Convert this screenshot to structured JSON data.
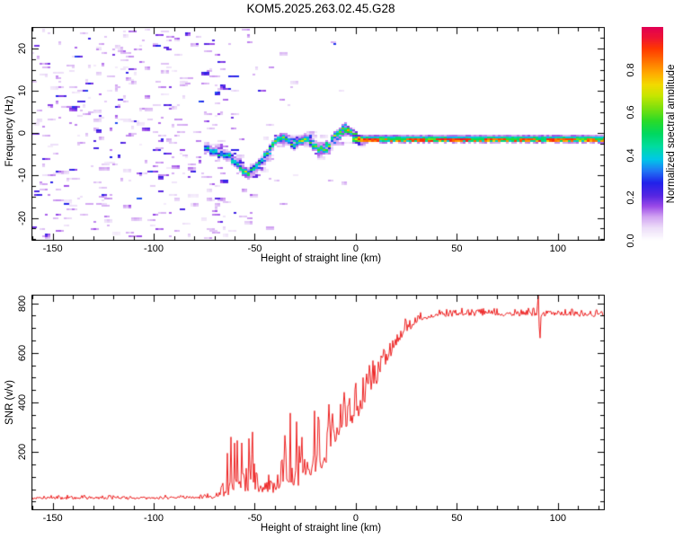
{
  "title": "KOM5.2025.263.02.45.G28",
  "chart_data": [
    {
      "type": "heatmap",
      "xlabel": "Height of straight line (km)",
      "ylabel": "Frequency (Hz)",
      "xlim": [
        -160.5,
        123.2
      ],
      "ylim": [
        -25.4,
        25.1
      ],
      "grid": false,
      "xticks": {
        "values": [
          -150,
          -100,
          -50,
          0,
          50,
          100
        ],
        "labels": [
          "-150",
          "-100",
          "-50",
          "0",
          "50",
          "100"
        ],
        "minor_step": 10
      },
      "yticks": {
        "values": [
          20,
          10,
          0,
          -10,
          -20
        ],
        "labels": [
          "20",
          "10",
          "0",
          "-10",
          "-20"
        ],
        "minor_step": 2.5
      },
      "colorbar": {
        "label": "Normalized spectral amplitude",
        "range": [
          0,
          1
        ],
        "tick_values": [
          0,
          0.2,
          0.4,
          0.6,
          0.8
        ],
        "tick_labels": [
          "0.0",
          "0.2",
          "0.4",
          "0.6",
          "0.8"
        ],
        "stops": [
          [
            0.0,
            "#ffffff"
          ],
          [
            0.06,
            "#ecddf8"
          ],
          [
            0.11,
            "#d2a4f2"
          ],
          [
            0.16,
            "#9b4ae8"
          ],
          [
            0.21,
            "#5526e2"
          ],
          [
            0.27,
            "#2121ea"
          ],
          [
            0.33,
            "#1f7cf5"
          ],
          [
            0.38,
            "#00c8e8"
          ],
          [
            0.44,
            "#00dca0"
          ],
          [
            0.5,
            "#00d860"
          ],
          [
            0.56,
            "#2ada28"
          ],
          [
            0.62,
            "#7ce00e"
          ],
          [
            0.68,
            "#c8e600"
          ],
          [
            0.73,
            "#f2da00"
          ],
          [
            0.78,
            "#ffae00"
          ],
          [
            0.84,
            "#ff7300"
          ],
          [
            0.9,
            "#ff3800"
          ],
          [
            0.95,
            "#ef1433"
          ],
          [
            1.0,
            "#e20053"
          ]
        ]
      },
      "noise_field": {
        "x_range": [
          -160.5,
          -70
        ],
        "freq_range": [
          -25.4,
          25.1
        ],
        "amplitude_range": [
          0.03,
          0.26
        ]
      },
      "ridge_track": [
        [
          -75.5,
          -3.0,
          0.38
        ],
        [
          -73,
          -3.6,
          0.46
        ],
        [
          -71,
          -4.0,
          0.5
        ],
        [
          -69,
          -4.3,
          0.45
        ],
        [
          -67,
          -4.6,
          0.42
        ],
        [
          -65,
          -5.0,
          0.46
        ],
        [
          -63,
          -5.4,
          0.48
        ],
        [
          -61,
          -6.2,
          0.5
        ],
        [
          -59,
          -7.2,
          0.52
        ],
        [
          -57,
          -8.3,
          0.56
        ],
        [
          -55,
          -9.2,
          0.68
        ],
        [
          -53,
          -9.2,
          0.54
        ],
        [
          -51,
          -8.2,
          0.48
        ],
        [
          -49,
          -7.2,
          0.5
        ],
        [
          -47,
          -6.2,
          0.46
        ],
        [
          -45,
          -5.0,
          0.5
        ],
        [
          -43,
          -3.6,
          0.48
        ],
        [
          -41,
          -2.2,
          0.52
        ],
        [
          -39,
          -1.3,
          0.56
        ],
        [
          -37,
          -0.9,
          0.62
        ],
        [
          -35,
          -1.2,
          0.52
        ],
        [
          -33,
          -1.8,
          0.48
        ],
        [
          -31,
          -2.3,
          0.52
        ],
        [
          -29,
          -2.0,
          0.56
        ],
        [
          -27,
          -1.3,
          0.62
        ],
        [
          -25,
          -1.3,
          0.56
        ],
        [
          -23,
          -2.0,
          0.52
        ],
        [
          -21,
          -3.0,
          0.52
        ],
        [
          -19,
          -3.6,
          0.56
        ],
        [
          -17,
          -3.8,
          0.62
        ],
        [
          -15,
          -3.4,
          0.56
        ],
        [
          -13,
          -2.2,
          0.52
        ],
        [
          -11,
          -0.8,
          0.56
        ],
        [
          -9,
          0.2,
          0.6
        ],
        [
          -7,
          1.0,
          0.64
        ],
        [
          -5,
          1.2,
          0.66
        ],
        [
          -4,
          0.9,
          0.68
        ],
        [
          -3,
          0.6,
          0.64
        ],
        [
          -2,
          -0.2,
          0.66
        ],
        [
          -1,
          -0.9,
          0.74
        ],
        [
          0,
          -1.2,
          0.85
        ],
        [
          1,
          -1.25,
          0.95
        ],
        [
          2,
          -1.25,
          1.0
        ]
      ],
      "flat_line": {
        "freq": -1.25,
        "x_range": [
          2,
          123.4
        ],
        "segments": [
          [
            2,
            10,
            0.95
          ],
          [
            10,
            12.5,
            0.6
          ],
          [
            12.5,
            15,
            0.85
          ],
          [
            15,
            24,
            0.55
          ],
          [
            24,
            33,
            0.9
          ],
          [
            33,
            38,
            0.6
          ],
          [
            38,
            56,
            0.93
          ],
          [
            56,
            62,
            0.55
          ],
          [
            62,
            73,
            0.9
          ],
          [
            73,
            80,
            0.55
          ],
          [
            80,
            88,
            0.88
          ],
          [
            88,
            93,
            0.5
          ],
          [
            93,
            108,
            0.9
          ],
          [
            108,
            113,
            0.6
          ],
          [
            113,
            117,
            0.85
          ],
          [
            117,
            121,
            0.55
          ],
          [
            121,
            123.4,
            0.92
          ]
        ]
      }
    },
    {
      "type": "line",
      "xlabel": "Height of straight line (km)",
      "ylabel": "SNR (v/v)",
      "xlim": [
        -160.5,
        123.2
      ],
      "ylim": [
        -35,
        835
      ],
      "grid": false,
      "xticks": {
        "values": [
          -150,
          -100,
          -50,
          0,
          50,
          100
        ],
        "labels": [
          "-150",
          "-100",
          "-50",
          "0",
          "50",
          "100"
        ],
        "minor_step": 10
      },
      "yticks": {
        "values": [
          200,
          400,
          600,
          800
        ],
        "labels": [
          "200",
          "400",
          "600",
          "800"
        ],
        "minor_step": 50
      },
      "line_color": "#ee2222",
      "envelope": [
        [
          -160.5,
          12,
          10
        ],
        [
          -150,
          12,
          12
        ],
        [
          -140,
          14,
          14
        ],
        [
          -130,
          12,
          10
        ],
        [
          -120,
          13,
          10
        ],
        [
          -110,
          12,
          10
        ],
        [
          -100,
          13,
          11
        ],
        [
          -90,
          13,
          12
        ],
        [
          -80,
          15,
          14
        ],
        [
          -72,
          15,
          16
        ],
        [
          -67,
          18,
          25
        ],
        [
          -65,
          25,
          80
        ],
        [
          -63.5,
          40,
          180
        ],
        [
          -62,
          55,
          230
        ],
        [
          -60,
          60,
          230
        ],
        [
          -58,
          65,
          225
        ],
        [
          -56,
          70,
          215
        ],
        [
          -54,
          60,
          195
        ],
        [
          -52,
          65,
          200
        ],
        [
          -50,
          70,
          185
        ],
        [
          -48,
          55,
          150
        ],
        [
          -46,
          45,
          95
        ],
        [
          -44,
          40,
          60
        ],
        [
          -42,
          42,
          60
        ],
        [
          -40,
          45,
          80
        ],
        [
          -38,
          50,
          140
        ],
        [
          -36,
          55,
          200
        ],
        [
          -34,
          65,
          245
        ],
        [
          -32,
          75,
          270
        ],
        [
          -30,
          85,
          330
        ],
        [
          -29,
          90,
          480
        ],
        [
          -28,
          95,
          300
        ],
        [
          -26,
          105,
          270
        ],
        [
          -24,
          115,
          255
        ],
        [
          -22,
          125,
          235
        ],
        [
          -20,
          135,
          225
        ],
        [
          -18,
          145,
          215
        ],
        [
          -16,
          165,
          205
        ],
        [
          -14,
          185,
          195
        ],
        [
          -12,
          215,
          185
        ],
        [
          -10,
          245,
          175
        ],
        [
          -8,
          270,
          170
        ],
        [
          -6,
          290,
          165
        ],
        [
          -4,
          310,
          160
        ],
        [
          -2,
          330,
          155
        ],
        [
          0,
          350,
          150
        ],
        [
          2,
          370,
          145
        ],
        [
          4,
          395,
          140
        ],
        [
          6,
          425,
          130
        ],
        [
          8,
          455,
          120
        ],
        [
          10,
          485,
          112
        ],
        [
          12,
          515,
          104
        ],
        [
          14,
          545,
          96
        ],
        [
          16,
          575,
          88
        ],
        [
          18,
          605,
          78
        ],
        [
          20,
          635,
          68
        ],
        [
          23,
          668,
          56
        ],
        [
          26,
          695,
          48
        ],
        [
          29,
          715,
          40
        ],
        [
          33,
          735,
          32
        ],
        [
          38,
          746,
          28
        ],
        [
          45,
          751,
          26
        ],
        [
          55,
          754,
          25
        ],
        [
          65,
          755,
          25
        ],
        [
          75,
          753,
          25
        ],
        [
          85,
          754,
          26
        ],
        [
          95,
          752,
          25
        ],
        [
          105,
          753,
          23
        ],
        [
          115,
          751,
          23
        ],
        [
          123.2,
          752,
          23
        ]
      ],
      "glitch": {
        "x": 90.3,
        "peak": 830,
        "trough": 660
      }
    }
  ]
}
